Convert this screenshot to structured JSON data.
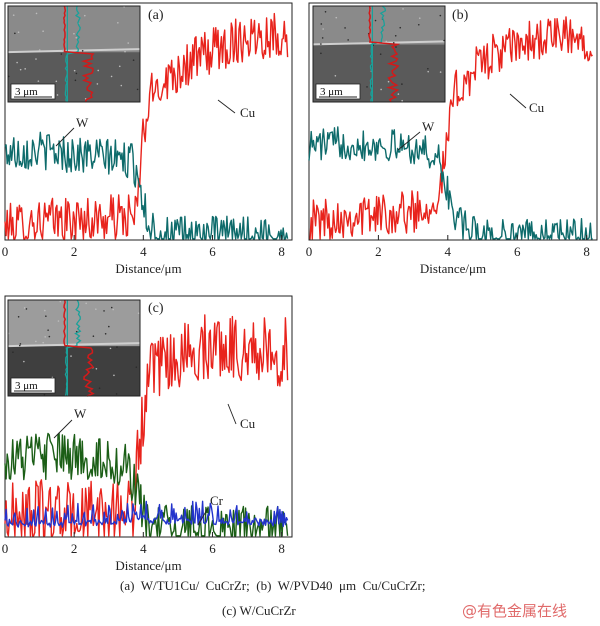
{
  "chart_data": [
    {
      "type": "line",
      "panel_label": "(a)",
      "xlabel": "Distance/μm",
      "xlim": [
        0,
        8.3
      ],
      "xticks": [
        0,
        2,
        4,
        6,
        8
      ],
      "ylim": [
        0,
        100
      ],
      "inset_scale_label": "3 μm",
      "series": [
        {
          "name": "Cu",
          "color": "#e8231c",
          "x": [
            0,
            1,
            2,
            3,
            3.8,
            4.0,
            4.3,
            5,
            6,
            7,
            8,
            8.2
          ],
          "y": [
            5,
            8,
            8,
            9,
            10,
            46,
            64,
            72,
            80,
            86,
            87,
            85
          ]
        },
        {
          "name": "W",
          "color": "#0e6b6b",
          "x": [
            0,
            1,
            2,
            3,
            3.7,
            3.9,
            4.1,
            4.4,
            5,
            6,
            7,
            8,
            8.2
          ],
          "y": [
            37,
            38,
            36,
            35,
            33,
            25,
            8,
            3,
            2,
            2,
            2,
            2,
            2
          ]
        }
      ]
    },
    {
      "type": "line",
      "panel_label": "(b)",
      "xlabel": "Distance/μm",
      "xlim": [
        0,
        8.3
      ],
      "xticks": [
        0,
        2,
        4,
        6,
        8
      ],
      "ylim": [
        0,
        100
      ],
      "inset_scale_label": "3 μm",
      "series": [
        {
          "name": "Cu",
          "color": "#e8231c",
          "x": [
            0,
            1,
            2,
            3,
            3.5,
            3.8,
            4.0,
            4.2,
            5,
            6,
            7,
            8,
            8.2
          ],
          "y": [
            8,
            10,
            11,
            12,
            15,
            22,
            44,
            62,
            76,
            82,
            86,
            84,
            86
          ]
        },
        {
          "name": "W",
          "color": "#0e6b6b",
          "x": [
            0,
            1,
            2,
            3,
            3.7,
            3.9,
            4.2,
            4.6,
            5,
            6,
            7,
            8,
            8.2
          ],
          "y": [
            40,
            41,
            40,
            39,
            35,
            25,
            10,
            4,
            2,
            2,
            2,
            2,
            2
          ]
        }
      ]
    },
    {
      "type": "line",
      "panel_label": "(c)",
      "xlabel": "Distance/μm",
      "xlim": [
        0,
        8.3
      ],
      "xticks": [
        0,
        2,
        4,
        6,
        8
      ],
      "ylim": [
        0,
        100
      ],
      "inset_scale_label": "3 μm",
      "series": [
        {
          "name": "Cu",
          "color": "#e8231c",
          "x": [
            0,
            1,
            2,
            3,
            3.7,
            3.9,
            4.2,
            5,
            6,
            7,
            8,
            8.2
          ],
          "y": [
            8,
            10,
            9,
            10,
            12,
            42,
            66,
            74,
            80,
            78,
            76,
            78
          ]
        },
        {
          "name": "W",
          "color": "#1b5e16",
          "x": [
            0,
            1,
            2,
            3,
            3.6,
            3.8,
            4.0,
            4.4,
            5,
            6,
            7,
            8,
            8.2
          ],
          "y": [
            32,
            34,
            33,
            32,
            28,
            18,
            8,
            4,
            3,
            3,
            3,
            3,
            3
          ]
        },
        {
          "name": "Cr",
          "color": "#2233cc",
          "x": [
            0,
            1,
            2,
            3,
            4,
            5,
            6,
            7,
            8,
            8.2
          ],
          "y": [
            4,
            4,
            4,
            5,
            6,
            5,
            5,
            5,
            4,
            4
          ]
        }
      ]
    }
  ],
  "caption": {
    "line1": "(a)  W/TU1Cu/  CuCrZr;  (b)  W/PVD40  μm  Cu/CuCrZr;",
    "line2": "(c) W/CuCrZr"
  },
  "watermark": "@有色金属在线"
}
